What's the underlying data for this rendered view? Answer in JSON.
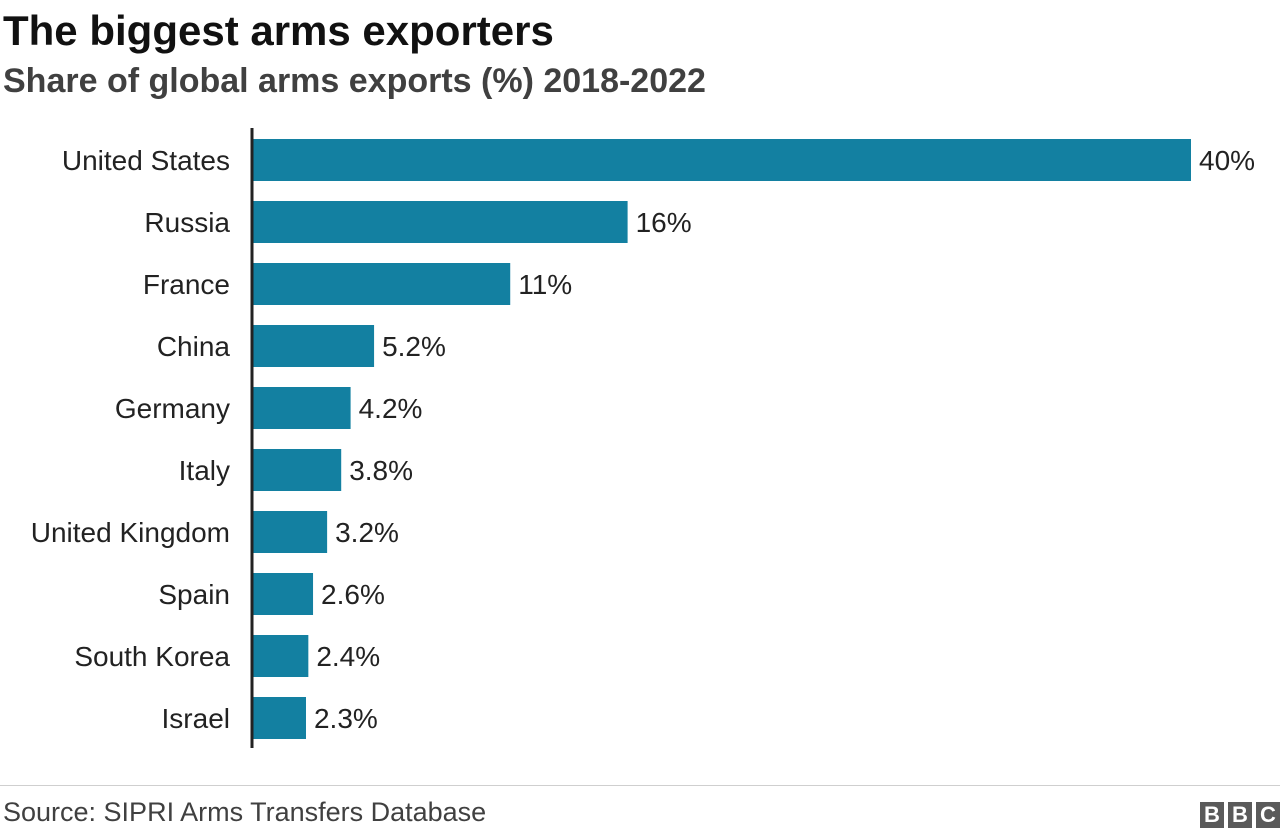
{
  "chart_data": {
    "type": "bar",
    "orientation": "horizontal",
    "title": "The biggest arms exporters",
    "subtitle": "Share of global arms exports (%) 2018-2022",
    "categories": [
      "United States",
      "Russia",
      "France",
      "China",
      "Germany",
      "Italy",
      "United Kingdom",
      "Spain",
      "South Korea",
      "Israel"
    ],
    "values": [
      40,
      16,
      11,
      5.2,
      4.2,
      3.8,
      3.2,
      2.6,
      2.4,
      2.3
    ],
    "value_labels": [
      "40%",
      "16%",
      "11%",
      "5.2%",
      "4.2%",
      "3.8%",
      "3.2%",
      "2.6%",
      "2.4%",
      "2.3%"
    ],
    "xlim": [
      0,
      40
    ],
    "grid": false,
    "bar_color": "#1380a1"
  },
  "footer": {
    "source": "Source: SIPRI Arms Transfers Database",
    "logo_letters": [
      "B",
      "B",
      "C"
    ]
  }
}
